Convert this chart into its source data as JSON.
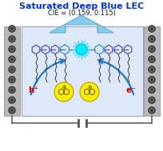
{
  "title": "Saturated Deep Blue LEC",
  "subtitle": "CIE = (0.159, 0.115)",
  "title_color": "#0033dd",
  "subtitle_color": "#111111",
  "device_bg": "#dde8f8",
  "electrode_color": "#b8b8b8",
  "electrode_border": "#888888",
  "arrow_up_color": "#88ccee",
  "arrow_up_edge": "#66aacc",
  "arrow_curve_color": "#2277cc",
  "molecule_color_left": "#5555aa",
  "molecule_color_center": "#3399bb",
  "flash_color": "#00ddff",
  "flash_star_color": "#00ffff",
  "yellow_sphere": "#ffee00",
  "yellow_sphere_edge": "#bbaa00",
  "chain_color": "#333333",
  "h_plus_color": "#cc0000",
  "e_minus_color": "#cc0000",
  "wire_color": "#555555",
  "circle_fill": "#444444",
  "circle_edge": "#222222"
}
